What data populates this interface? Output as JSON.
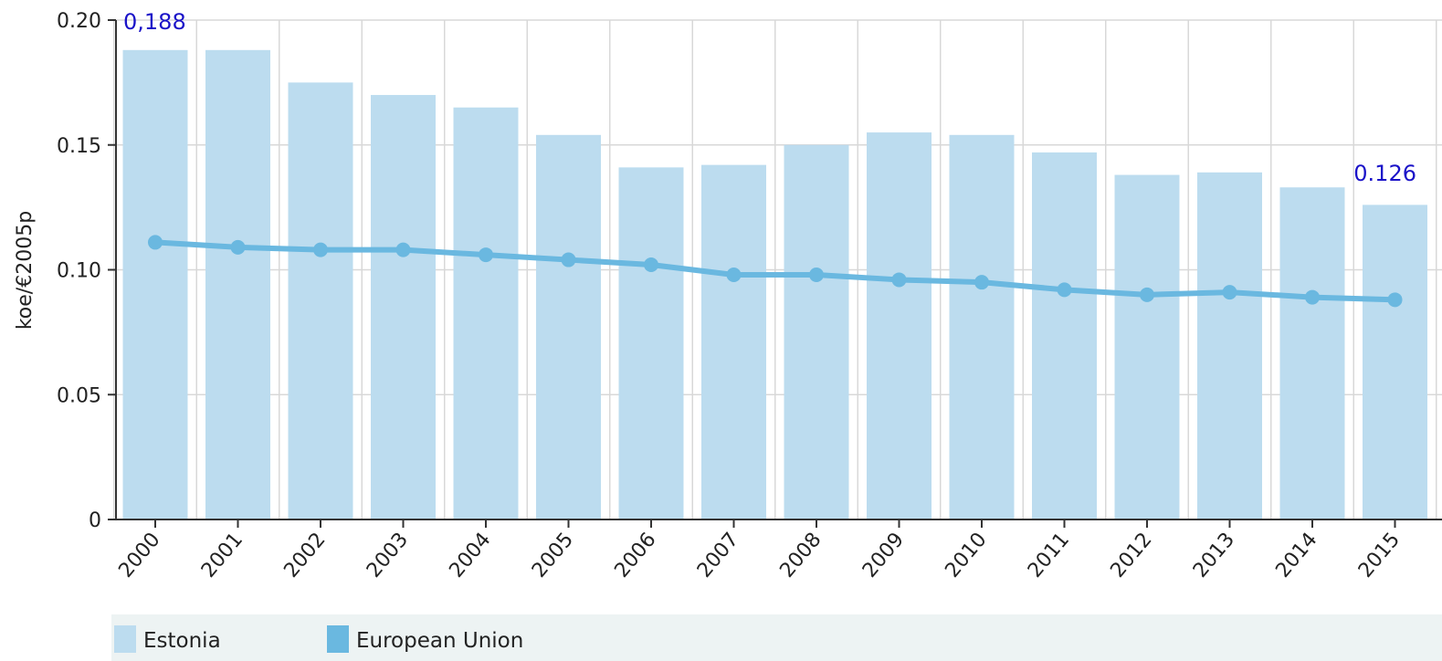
{
  "chart_data": {
    "type": "bar",
    "categories": [
      "2000",
      "2001",
      "2002",
      "2003",
      "2004",
      "2005",
      "2006",
      "2007",
      "2008",
      "2009",
      "2010",
      "2011",
      "2012",
      "2013",
      "2014",
      "2015"
    ],
    "series": [
      {
        "name": "Estonia",
        "type": "bar",
        "color": "#bcdcef",
        "values": [
          0.188,
          0.188,
          0.175,
          0.17,
          0.165,
          0.154,
          0.141,
          0.142,
          0.15,
          0.155,
          0.154,
          0.147,
          0.138,
          0.139,
          0.133,
          0.126
        ]
      },
      {
        "name": "European Union",
        "type": "line",
        "color": "#6ab8e0",
        "values": [
          0.111,
          0.109,
          0.108,
          0.108,
          0.106,
          0.104,
          0.102,
          0.098,
          0.098,
          0.096,
          0.095,
          0.092,
          0.09,
          0.091,
          0.089,
          0.088
        ]
      }
    ],
    "ylabel": "koe/€2005p",
    "xlabel": "",
    "ylim": [
      0,
      0.2
    ],
    "yticks": [
      0,
      0.05,
      0.1,
      0.15,
      0.2
    ],
    "ytick_labels": [
      "0",
      "0.05",
      "0.10",
      "0.15",
      "0.20"
    ],
    "grid": true,
    "legend_position": "bottom",
    "annotations": [
      {
        "text": "0,188",
        "category": "2000"
      },
      {
        "text": "0.126",
        "category": "2015"
      }
    ]
  }
}
